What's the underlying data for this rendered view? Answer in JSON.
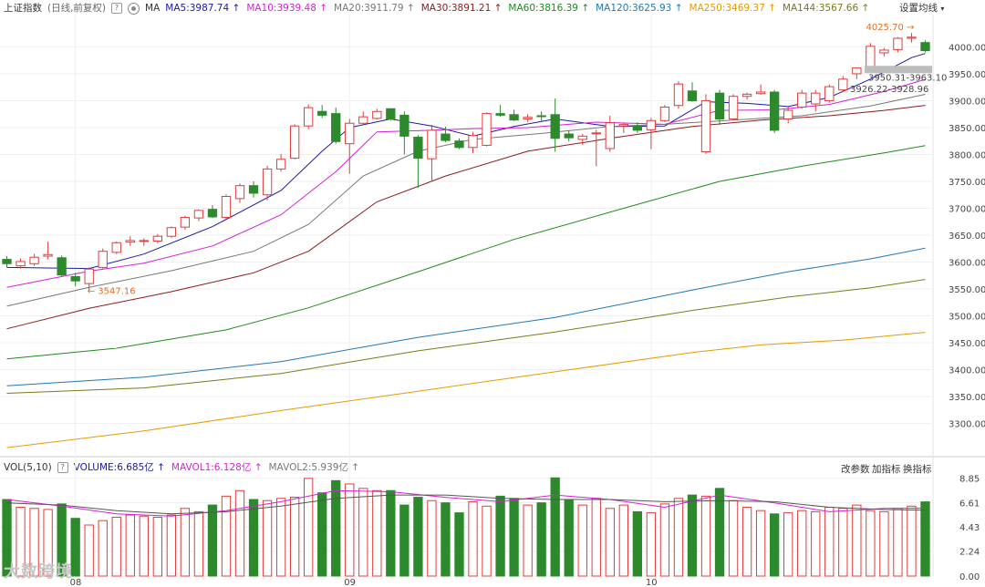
{
  "header": {
    "index_name": "上证指数",
    "mode": "(日线,前复权)",
    "help_glyph": "?",
    "ma_label": "MA",
    "settings_label": "设置均线",
    "ma_items": [
      {
        "text": "MA5:3987.74",
        "color": "#1a1aa6",
        "arrow": "↑"
      },
      {
        "text": "MA10:3939.48",
        "color": "#d61fd6",
        "arrow": "↑"
      },
      {
        "text": "MA20:3911.79",
        "color": "#777777",
        "arrow": "↑"
      },
      {
        "text": "MA30:3891.21",
        "color": "#8b1a1a",
        "arrow": "↑"
      },
      {
        "text": "MA60:3816.39",
        "color": "#1e8a1e",
        "arrow": "↑"
      },
      {
        "text": "MA120:3625.93",
        "color": "#1f77b4",
        "arrow": "↑"
      },
      {
        "text": "MA250:3469.37",
        "color": "#e69a00",
        "arrow": "↑"
      },
      {
        "text": "MA144:3567.66",
        "color": "#7a7a1a",
        "arrow": "↑"
      }
    ]
  },
  "vol_header": {
    "vol_label": "VOL(5,10)",
    "help_glyph": "?",
    "items": [
      {
        "text": "VOLUME:6.685亿",
        "color": "#1a1aa6",
        "arrow": "↑"
      },
      {
        "text": "MAVOL1:6.128亿",
        "color": "#d61fd6",
        "arrow": "↑"
      },
      {
        "text": "MAVOL2:5.939亿",
        "color": "#777777",
        "arrow": "↑"
      }
    ],
    "buttons": [
      "改参数",
      "加指标",
      "换指标"
    ]
  },
  "annotations": {
    "high": "4025.70",
    "low": "3547.16",
    "range1": "3950.31-3963.10",
    "range2": "3926.22-3928.96"
  },
  "watermark": "大数跨境",
  "colors": {
    "up": "#e23c3c",
    "down": "#2c8a2c"
  },
  "chart_data": {
    "type": "candlestick",
    "price_axis": {
      "ticks": [
        3300,
        3350,
        3400,
        3450,
        3500,
        3550,
        3600,
        3650,
        3700,
        3750,
        3800,
        3850,
        3900,
        3950,
        4000
      ],
      "ylim": [
        3240,
        4060
      ]
    },
    "volume_axis": {
      "ticks": [
        "0.00",
        "2.24",
        "4.43",
        "6.61",
        "8.85"
      ],
      "ylim": [
        0,
        9.2
      ]
    },
    "month_labels": [
      {
        "label": "08",
        "index": 5
      },
      {
        "label": "09",
        "index": 25
      },
      {
        "label": "10",
        "index": 47
      }
    ],
    "candles": [
      {
        "o": 3605,
        "h": 3611,
        "l": 3590,
        "c": 3597,
        "v": 6.9
      },
      {
        "o": 3593,
        "h": 3607,
        "l": 3588,
        "c": 3601,
        "v": 6.2
      },
      {
        "o": 3597,
        "h": 3615,
        "l": 3593,
        "c": 3609,
        "v": 6.1
      },
      {
        "o": 3611,
        "h": 3638,
        "l": 3605,
        "c": 3614,
        "v": 6.0
      },
      {
        "o": 3608,
        "h": 3612,
        "l": 3573,
        "c": 3576,
        "v": 6.5
      },
      {
        "o": 3573,
        "h": 3580,
        "l": 3555,
        "c": 3565,
        "v": 5.2
      },
      {
        "o": 3560,
        "h": 3590,
        "l": 3547,
        "c": 3587,
        "v": 4.6
      },
      {
        "o": 3590,
        "h": 3625,
        "l": 3588,
        "c": 3620,
        "v": 5.0
      },
      {
        "o": 3618,
        "h": 3638,
        "l": 3615,
        "c": 3636,
        "v": 5.3
      },
      {
        "o": 3637,
        "h": 3648,
        "l": 3630,
        "c": 3640,
        "v": 5.5
      },
      {
        "o": 3640,
        "h": 3644,
        "l": 3630,
        "c": 3640,
        "v": 5.4
      },
      {
        "o": 3639,
        "h": 3652,
        "l": 3635,
        "c": 3648,
        "v": 5.3
      },
      {
        "o": 3648,
        "h": 3666,
        "l": 3645,
        "c": 3664,
        "v": 5.5
      },
      {
        "o": 3665,
        "h": 3686,
        "l": 3660,
        "c": 3683,
        "v": 6.1
      },
      {
        "o": 3682,
        "h": 3698,
        "l": 3676,
        "c": 3696,
        "v": 5.8
      },
      {
        "o": 3698,
        "h": 3706,
        "l": 3682,
        "c": 3684,
        "v": 6.4
      },
      {
        "o": 3683,
        "h": 3726,
        "l": 3680,
        "c": 3722,
        "v": 7.2
      },
      {
        "o": 3718,
        "h": 3746,
        "l": 3710,
        "c": 3742,
        "v": 7.7
      },
      {
        "o": 3742,
        "h": 3750,
        "l": 3720,
        "c": 3728,
        "v": 6.9
      },
      {
        "o": 3725,
        "h": 3779,
        "l": 3715,
        "c": 3773,
        "v": 6.8
      },
      {
        "o": 3773,
        "h": 3801,
        "l": 3768,
        "c": 3791,
        "v": 7.0
      },
      {
        "o": 3793,
        "h": 3856,
        "l": 3791,
        "c": 3853,
        "v": 7.1
      },
      {
        "o": 3853,
        "h": 3893,
        "l": 3847,
        "c": 3887,
        "v": 8.8
      },
      {
        "o": 3880,
        "h": 3892,
        "l": 3868,
        "c": 3873,
        "v": 7.5
      },
      {
        "o": 3876,
        "h": 3887,
        "l": 3820,
        "c": 3824,
        "v": 8.6
      },
      {
        "o": 3820,
        "h": 3866,
        "l": 3764,
        "c": 3858,
        "v": 8.3
      },
      {
        "o": 3858,
        "h": 3880,
        "l": 3855,
        "c": 3870,
        "v": 7.9
      },
      {
        "o": 3867,
        "h": 3885,
        "l": 3865,
        "c": 3880,
        "v": 7.7
      },
      {
        "o": 3885,
        "h": 3885,
        "l": 3863,
        "c": 3866,
        "v": 7.7
      },
      {
        "o": 3873,
        "h": 3880,
        "l": 3800,
        "c": 3834,
        "v": 6.4
      },
      {
        "o": 3832,
        "h": 3836,
        "l": 3738,
        "c": 3793,
        "v": 7.1
      },
      {
        "o": 3792,
        "h": 3855,
        "l": 3750,
        "c": 3845,
        "v": 6.8
      },
      {
        "o": 3838,
        "h": 3852,
        "l": 3823,
        "c": 3826,
        "v": 6.6
      },
      {
        "o": 3825,
        "h": 3830,
        "l": 3810,
        "c": 3813,
        "v": 5.7
      },
      {
        "o": 3813,
        "h": 3842,
        "l": 3802,
        "c": 3835,
        "v": 6.7
      },
      {
        "o": 3817,
        "h": 3878,
        "l": 3815,
        "c": 3876,
        "v": 6.3
      },
      {
        "o": 3876,
        "h": 3892,
        "l": 3870,
        "c": 3873,
        "v": 7.2
      },
      {
        "o": 3874,
        "h": 3883,
        "l": 3862,
        "c": 3864,
        "v": 7.0
      },
      {
        "o": 3866,
        "h": 3875,
        "l": 3860,
        "c": 3869,
        "v": 6.4
      },
      {
        "o": 3872,
        "h": 3880,
        "l": 3862,
        "c": 3871,
        "v": 6.6
      },
      {
        "o": 3874,
        "h": 3904,
        "l": 3805,
        "c": 3830,
        "v": 8.85
      },
      {
        "o": 3838,
        "h": 3845,
        "l": 3824,
        "c": 3831,
        "v": 6.9
      },
      {
        "o": 3828,
        "h": 3838,
        "l": 3818,
        "c": 3834,
        "v": 6.4
      },
      {
        "o": 3840,
        "h": 3846,
        "l": 3778,
        "c": 3840,
        "v": 7.0
      },
      {
        "o": 3811,
        "h": 3872,
        "l": 3805,
        "c": 3859,
        "v": 6.1
      },
      {
        "o": 3853,
        "h": 3858,
        "l": 3840,
        "c": 3856,
        "v": 6.4
      },
      {
        "o": 3853,
        "h": 3860,
        "l": 3840,
        "c": 3845,
        "v": 5.8
      },
      {
        "o": 3846,
        "h": 3868,
        "l": 3810,
        "c": 3863,
        "v": 5.7
      },
      {
        "o": 3863,
        "h": 3892,
        "l": 3860,
        "c": 3888,
        "v": 6.5
      },
      {
        "o": 3891,
        "h": 3936,
        "l": 3885,
        "c": 3931,
        "v": 7.0
      },
      {
        "o": 3918,
        "h": 3934,
        "l": 3898,
        "c": 3900,
        "v": 7.3
      },
      {
        "o": 3805,
        "h": 3912,
        "l": 3801,
        "c": 3900,
        "v": 7.2
      },
      {
        "o": 3914,
        "h": 3920,
        "l": 3855,
        "c": 3866,
        "v": 7.9
      },
      {
        "o": 3866,
        "h": 3912,
        "l": 3863,
        "c": 3908,
        "v": 6.8
      },
      {
        "o": 3908,
        "h": 3915,
        "l": 3902,
        "c": 3912,
        "v": 6.2
      },
      {
        "o": 3913,
        "h": 3930,
        "l": 3911,
        "c": 3916,
        "v": 5.9
      },
      {
        "o": 3916,
        "h": 3920,
        "l": 3840,
        "c": 3845,
        "v": 5.6
      },
      {
        "o": 3866,
        "h": 3889,
        "l": 3858,
        "c": 3882,
        "v": 5.7
      },
      {
        "o": 3888,
        "h": 3920,
        "l": 3885,
        "c": 3914,
        "v": 5.9
      },
      {
        "o": 3894,
        "h": 3920,
        "l": 3880,
        "c": 3914,
        "v": 5.8
      },
      {
        "o": 3900,
        "h": 3930,
        "l": 3896,
        "c": 3926,
        "v": 6.2
      },
      {
        "o": 3920,
        "h": 3946,
        "l": 3916,
        "c": 3940,
        "v": 6.1
      },
      {
        "o": 3950,
        "h": 3960,
        "l": 3940,
        "c": 3961,
        "v": 6.4
      },
      {
        "o": 3963,
        "h": 4007,
        "l": 3955,
        "c": 4001,
        "v": 5.9
      },
      {
        "o": 3989,
        "h": 3998,
        "l": 3982,
        "c": 3994,
        "v": 5.8
      },
      {
        "o": 3995,
        "h": 4018,
        "l": 3990,
        "c": 4016,
        "v": 6.1
      },
      {
        "o": 4016,
        "h": 4025.7,
        "l": 4008,
        "c": 4018,
        "v": 6.3
      },
      {
        "o": 4008,
        "h": 4012,
        "l": 3990,
        "c": 3993,
        "v": 6.685
      }
    ],
    "ma_lines": [
      {
        "name": "MA5",
        "color": "#1a1aa6",
        "points": [
          [
            0,
            3590
          ],
          [
            6,
            3588
          ],
          [
            10,
            3615
          ],
          [
            15,
            3666
          ],
          [
            20,
            3733
          ],
          [
            23,
            3806
          ],
          [
            25,
            3850
          ],
          [
            28,
            3866
          ],
          [
            31,
            3853
          ],
          [
            34,
            3834
          ],
          [
            37,
            3852
          ],
          [
            40,
            3866
          ],
          [
            44,
            3852
          ],
          [
            48,
            3853
          ],
          [
            51,
            3898
          ],
          [
            54,
            3895
          ],
          [
            57,
            3889
          ],
          [
            60,
            3906
          ],
          [
            63,
            3940
          ],
          [
            66,
            3980
          ],
          [
            67,
            3987.74
          ]
        ]
      },
      {
        "name": "MA10",
        "color": "#d61fd6",
        "points": [
          [
            0,
            3553
          ],
          [
            6,
            3583
          ],
          [
            10,
            3598
          ],
          [
            15,
            3630
          ],
          [
            20,
            3688
          ],
          [
            24,
            3768
          ],
          [
            27,
            3842
          ],
          [
            31,
            3845
          ],
          [
            34,
            3848
          ],
          [
            38,
            3850
          ],
          [
            43,
            3860
          ],
          [
            48,
            3856
          ],
          [
            52,
            3882
          ],
          [
            56,
            3883
          ],
          [
            60,
            3893
          ],
          [
            64,
            3917
          ],
          [
            67,
            3939.48
          ]
        ]
      },
      {
        "name": "MA20",
        "color": "#777777",
        "points": [
          [
            0,
            3518
          ],
          [
            6,
            3553
          ],
          [
            12,
            3584
          ],
          [
            18,
            3620
          ],
          [
            22,
            3670
          ],
          [
            26,
            3760
          ],
          [
            30,
            3806
          ],
          [
            34,
            3828
          ],
          [
            39,
            3839
          ],
          [
            44,
            3852
          ],
          [
            48,
            3856
          ],
          [
            53,
            3864
          ],
          [
            58,
            3872
          ],
          [
            63,
            3890
          ],
          [
            67,
            3911.79
          ]
        ]
      },
      {
        "name": "MA30",
        "color": "#8b1a1a",
        "points": [
          [
            0,
            3476
          ],
          [
            6,
            3514
          ],
          [
            12,
            3545
          ],
          [
            18,
            3580
          ],
          [
            22,
            3620
          ],
          [
            27,
            3712
          ],
          [
            32,
            3760
          ],
          [
            38,
            3806
          ],
          [
            44,
            3830
          ],
          [
            50,
            3852
          ],
          [
            55,
            3864
          ],
          [
            60,
            3872
          ],
          [
            64,
            3882
          ],
          [
            67,
            3891.21
          ]
        ]
      },
      {
        "name": "MA60",
        "color": "#1e8a1e",
        "points": [
          [
            0,
            3420
          ],
          [
            8,
            3440
          ],
          [
            16,
            3474
          ],
          [
            22,
            3515
          ],
          [
            30,
            3582
          ],
          [
            37,
            3642
          ],
          [
            45,
            3700
          ],
          [
            52,
            3750
          ],
          [
            58,
            3778
          ],
          [
            64,
            3803
          ],
          [
            67,
            3816.39
          ]
        ]
      },
      {
        "name": "MA120",
        "color": "#1f77b4",
        "points": [
          [
            0,
            3370
          ],
          [
            10,
            3386
          ],
          [
            20,
            3415
          ],
          [
            30,
            3460
          ],
          [
            40,
            3497
          ],
          [
            50,
            3548
          ],
          [
            57,
            3582
          ],
          [
            63,
            3606
          ],
          [
            67,
            3625.93
          ]
        ]
      },
      {
        "name": "MA144",
        "color": "#7a7a1a",
        "points": [
          [
            0,
            3356
          ],
          [
            10,
            3366
          ],
          [
            20,
            3393
          ],
          [
            30,
            3435
          ],
          [
            40,
            3470
          ],
          [
            50,
            3510
          ],
          [
            57,
            3535
          ],
          [
            63,
            3552
          ],
          [
            67,
            3567.66
          ]
        ]
      },
      {
        "name": "MA250",
        "color": "#e69a00",
        "points": [
          [
            0,
            3255
          ],
          [
            10,
            3286
          ],
          [
            20,
            3324
          ],
          [
            30,
            3360
          ],
          [
            40,
            3396
          ],
          [
            50,
            3432
          ],
          [
            55,
            3446
          ],
          [
            61,
            3455
          ],
          [
            67,
            3469.37
          ]
        ]
      }
    ],
    "vol_ma_lines": [
      {
        "name": "MAVOL1",
        "color": "#d61fd6",
        "points": [
          [
            0,
            6.9
          ],
          [
            4,
            6.3
          ],
          [
            8,
            5.6
          ],
          [
            12,
            5.4
          ],
          [
            16,
            5.9
          ],
          [
            20,
            6.7
          ],
          [
            24,
            7.7
          ],
          [
            28,
            7.6
          ],
          [
            32,
            7.1
          ],
          [
            36,
            6.7
          ],
          [
            40,
            7.3
          ],
          [
            44,
            6.9
          ],
          [
            48,
            6.2
          ],
          [
            52,
            7.3
          ],
          [
            56,
            6.6
          ],
          [
            60,
            5.8
          ],
          [
            64,
            6.1
          ],
          [
            67,
            6.128
          ]
        ]
      },
      {
        "name": "MAVOL2",
        "color": "#555555",
        "points": [
          [
            0,
            6.6
          ],
          [
            4,
            6.4
          ],
          [
            8,
            5.9
          ],
          [
            12,
            5.6
          ],
          [
            16,
            5.8
          ],
          [
            20,
            6.3
          ],
          [
            24,
            7.0
          ],
          [
            28,
            7.3
          ],
          [
            32,
            7.3
          ],
          [
            36,
            7.0
          ],
          [
            40,
            6.9
          ],
          [
            44,
            6.9
          ],
          [
            48,
            6.7
          ],
          [
            52,
            6.8
          ],
          [
            56,
            6.7
          ],
          [
            60,
            6.2
          ],
          [
            64,
            6.0
          ],
          [
            67,
            5.939
          ]
        ]
      }
    ]
  }
}
